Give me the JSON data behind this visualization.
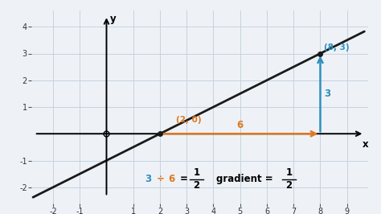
{
  "bg_color": "#eef2f7",
  "grid_color": "#c5d3e0",
  "line_color": "#1a1a1a",
  "orange_color": "#e07820",
  "blue_color": "#2e8fc0",
  "point_color": "#1a1a1a",
  "xlim": [
    -2.8,
    9.8
  ],
  "ylim": [
    -2.6,
    4.6
  ],
  "xticks": [
    -2,
    -1,
    1,
    2,
    3,
    4,
    5,
    6,
    7,
    8,
    9
  ],
  "yticks": [
    -2,
    -1,
    1,
    2,
    3,
    4
  ],
  "line_slope": 0.5,
  "line_intercept": -1,
  "point1": [
    2,
    0
  ],
  "point2": [
    8,
    3
  ],
  "label_20": "(2, 0)",
  "label_83": "(8, 3)",
  "label_6": "6",
  "label_3": "3"
}
